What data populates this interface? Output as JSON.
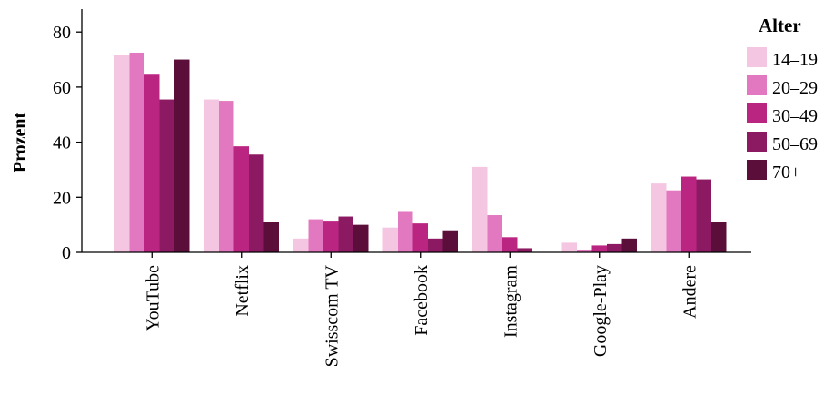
{
  "chart_data": {
    "type": "bar",
    "title": "",
    "xlabel": "",
    "ylabel": "Prozent",
    "ylim": [
      0,
      88
    ],
    "yticks": [
      0,
      20,
      40,
      60,
      80
    ],
    "grid": false,
    "legend_title": "Alter",
    "legend_position": "right",
    "categories": [
      "YouTube",
      "Netflix",
      "Swisscom TV",
      "Facebook",
      "Instagram",
      "Google-Play",
      "Andere"
    ],
    "series": [
      {
        "name": "14–19",
        "color": "#f4c6e2",
        "values": [
          71.5,
          55.5,
          5,
          9,
          31,
          3.5,
          25
        ]
      },
      {
        "name": "20–29",
        "color": "#e279c0",
        "values": [
          72.5,
          55,
          12,
          15,
          13.5,
          1,
          22.5
        ]
      },
      {
        "name": "30–49",
        "color": "#bb2582",
        "values": [
          64.5,
          38.5,
          11.5,
          10.5,
          5.5,
          2.5,
          27.5
        ]
      },
      {
        "name": "50–69",
        "color": "#8c1a62",
        "values": [
          55.5,
          35.5,
          13,
          5,
          1.5,
          3,
          26.5
        ]
      },
      {
        "name": "70+",
        "color": "#5c0e3a",
        "values": [
          70,
          11,
          10,
          8,
          0,
          5,
          11
        ]
      }
    ]
  }
}
